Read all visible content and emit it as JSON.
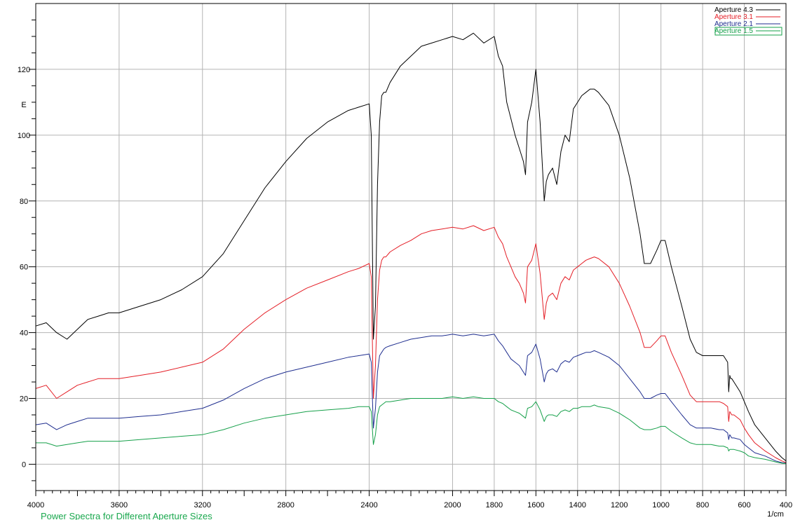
{
  "chart_data": {
    "type": "line",
    "caption": "Power Spectra for Different Aperture Sizes",
    "xlabel": "1/cm",
    "ylabel": "E",
    "xlim": [
      4000,
      400
    ],
    "ylim": [
      -8,
      140
    ],
    "x_reversed": true,
    "xticks": [
      4000,
      3600,
      3200,
      2800,
      2400,
      2000,
      1800,
      1600,
      1400,
      1200,
      1000,
      800,
      600,
      400
    ],
    "yticks": [
      0,
      20,
      40,
      60,
      80,
      100,
      120
    ],
    "grid": true,
    "legend_position": "top-right",
    "colors": {
      "grid": "#b4b4b4",
      "axis": "#000000",
      "caption": "#1aa84e"
    },
    "series": [
      {
        "name": "Aperture 4.3",
        "color": "#000000",
        "x": [
          4000,
          3950,
          3900,
          3850,
          3800,
          3750,
          3700,
          3650,
          3600,
          3500,
          3400,
          3300,
          3200,
          3100,
          3000,
          2900,
          2800,
          2700,
          2600,
          2500,
          2450,
          2400,
          2390,
          2380,
          2370,
          2360,
          2350,
          2340,
          2330,
          2320,
          2300,
          2250,
          2200,
          2150,
          2100,
          2050,
          2000,
          1950,
          1900,
          1850,
          1800,
          1780,
          1760,
          1740,
          1720,
          1700,
          1680,
          1660,
          1650,
          1640,
          1620,
          1600,
          1580,
          1560,
          1550,
          1540,
          1520,
          1500,
          1480,
          1460,
          1440,
          1420,
          1400,
          1380,
          1360,
          1340,
          1320,
          1300,
          1250,
          1200,
          1150,
          1100,
          1080,
          1050,
          1020,
          1000,
          980,
          950,
          900,
          860,
          830,
          800,
          760,
          720,
          700,
          680,
          675,
          670,
          665,
          660,
          650,
          620,
          600,
          580,
          550,
          500,
          450,
          420,
          400
        ],
        "y": [
          42,
          43,
          40,
          38,
          41,
          44,
          45,
          46,
          46,
          48,
          50,
          53,
          57,
          64,
          74,
          84,
          92,
          99,
          104,
          107.5,
          108.5,
          109.5,
          100,
          38,
          48,
          85,
          104,
          112,
          113,
          113,
          116,
          121,
          124,
          127,
          128,
          129,
          130,
          129,
          131,
          128,
          130,
          124,
          121,
          110,
          105,
          100,
          96,
          92,
          88,
          104,
          110,
          120,
          104,
          80,
          86,
          88,
          90,
          85,
          95,
          100,
          98,
          108,
          110,
          112,
          113,
          114,
          114,
          113,
          109,
          100,
          87,
          70,
          61,
          61,
          65,
          68,
          68,
          60,
          48,
          38,
          34,
          33,
          33,
          33,
          33,
          31,
          22,
          27,
          26,
          26,
          25,
          22,
          19,
          16,
          12,
          8,
          4,
          2,
          1
        ]
      },
      {
        "name": "Aperture 3.1",
        "color": "#e41e26",
        "x": [
          4000,
          3950,
          3900,
          3850,
          3800,
          3750,
          3700,
          3650,
          3600,
          3500,
          3400,
          3300,
          3200,
          3100,
          3000,
          2900,
          2800,
          2700,
          2600,
          2500,
          2450,
          2400,
          2390,
          2380,
          2370,
          2360,
          2350,
          2340,
          2330,
          2320,
          2300,
          2250,
          2200,
          2150,
          2100,
          2050,
          2000,
          1950,
          1900,
          1850,
          1800,
          1780,
          1760,
          1740,
          1720,
          1700,
          1680,
          1660,
          1650,
          1640,
          1620,
          1600,
          1580,
          1560,
          1550,
          1540,
          1520,
          1500,
          1480,
          1460,
          1440,
          1420,
          1400,
          1380,
          1360,
          1340,
          1320,
          1300,
          1250,
          1200,
          1150,
          1100,
          1080,
          1050,
          1020,
          1000,
          980,
          950,
          900,
          860,
          830,
          800,
          760,
          720,
          700,
          680,
          675,
          670,
          665,
          660,
          650,
          620,
          600,
          580,
          550,
          500,
          450,
          420,
          400
        ],
        "y": [
          23,
          24,
          20,
          22,
          24,
          25,
          26,
          26,
          26,
          27,
          28,
          29.5,
          31,
          35,
          41,
          46,
          50,
          53.5,
          56,
          58.5,
          59.5,
          61,
          57,
          20,
          30,
          50,
          59,
          62,
          63,
          63,
          64.5,
          66.5,
          68,
          70,
          71,
          71.5,
          72,
          71.5,
          72.5,
          71,
          72,
          69,
          67,
          63,
          60,
          57,
          55,
          52,
          49,
          60,
          62,
          67,
          58,
          44,
          49,
          51,
          52,
          50,
          55,
          57,
          56,
          59,
          60,
          61,
          62,
          62.5,
          63,
          62.5,
          60,
          55,
          48,
          40,
          35.5,
          35.5,
          37.5,
          39,
          39,
          34,
          27,
          21,
          19,
          19,
          19,
          19,
          18.5,
          17.5,
          13,
          16,
          15.5,
          15,
          15,
          13.5,
          11,
          9,
          6.5,
          4,
          2,
          1,
          0.5
        ]
      },
      {
        "name": "Aperture 2.1",
        "color": "#1f2e8f",
        "x": [
          4000,
          3950,
          3900,
          3850,
          3800,
          3750,
          3700,
          3650,
          3600,
          3500,
          3400,
          3300,
          3200,
          3100,
          3000,
          2900,
          2800,
          2700,
          2600,
          2500,
          2450,
          2400,
          2390,
          2380,
          2370,
          2360,
          2350,
          2340,
          2330,
          2320,
          2300,
          2250,
          2200,
          2150,
          2100,
          2050,
          2000,
          1950,
          1900,
          1850,
          1800,
          1780,
          1760,
          1740,
          1720,
          1700,
          1680,
          1660,
          1650,
          1640,
          1620,
          1600,
          1580,
          1560,
          1550,
          1540,
          1520,
          1500,
          1480,
          1460,
          1440,
          1420,
          1400,
          1380,
          1360,
          1340,
          1320,
          1300,
          1250,
          1200,
          1150,
          1100,
          1080,
          1050,
          1020,
          1000,
          980,
          950,
          900,
          860,
          830,
          800,
          760,
          720,
          700,
          680,
          675,
          670,
          665,
          660,
          650,
          620,
          600,
          580,
          550,
          500,
          450,
          420,
          400
        ],
        "y": [
          12,
          12.5,
          10.5,
          12,
          13,
          14,
          14,
          14,
          14,
          14.5,
          15,
          16,
          17,
          19.5,
          23,
          26,
          28,
          29.5,
          31,
          32.5,
          33,
          33.5,
          31,
          11,
          17,
          28,
          33,
          34,
          35,
          35.5,
          36,
          37,
          38,
          38.5,
          39,
          39,
          39.5,
          39,
          39.5,
          39,
          39.5,
          37.5,
          36,
          34,
          32,
          31,
          30,
          28,
          27,
          33,
          34,
          36.5,
          32,
          25,
          27.5,
          28.5,
          29,
          28,
          30.5,
          31.5,
          31,
          32.5,
          33,
          33.5,
          34,
          34,
          34.5,
          34,
          32.5,
          30,
          26,
          22,
          20,
          20,
          21,
          21.5,
          21.5,
          19,
          15,
          12,
          11,
          11,
          11,
          10.5,
          10.5,
          9.5,
          7.5,
          9,
          8.5,
          8,
          8,
          7.5,
          6,
          5,
          3.5,
          2.5,
          1,
          0.5,
          0.3
        ]
      },
      {
        "name": "Aperture 1.5",
        "color": "#16a04a",
        "x": [
          4000,
          3950,
          3900,
          3850,
          3800,
          3750,
          3700,
          3650,
          3600,
          3500,
          3400,
          3300,
          3200,
          3100,
          3000,
          2900,
          2800,
          2700,
          2600,
          2500,
          2450,
          2400,
          2390,
          2380,
          2370,
          2360,
          2350,
          2340,
          2330,
          2320,
          2300,
          2250,
          2200,
          2150,
          2100,
          2050,
          2000,
          1950,
          1900,
          1850,
          1800,
          1780,
          1760,
          1740,
          1720,
          1700,
          1680,
          1660,
          1650,
          1640,
          1620,
          1600,
          1580,
          1560,
          1550,
          1540,
          1520,
          1500,
          1480,
          1460,
          1440,
          1420,
          1400,
          1380,
          1360,
          1340,
          1320,
          1300,
          1250,
          1200,
          1150,
          1100,
          1080,
          1050,
          1020,
          1000,
          980,
          950,
          900,
          860,
          830,
          800,
          760,
          720,
          700,
          680,
          675,
          670,
          665,
          660,
          650,
          620,
          600,
          580,
          550,
          500,
          450,
          420,
          400
        ],
        "y": [
          6.5,
          6.5,
          5.5,
          6,
          6.5,
          7,
          7,
          7,
          7,
          7.5,
          8,
          8.5,
          9,
          10.5,
          12.5,
          14,
          15,
          16,
          16.5,
          17,
          17.5,
          17.5,
          16,
          6,
          9,
          15,
          17.5,
          18,
          18.5,
          19,
          19,
          19.5,
          20,
          20,
          20,
          20,
          20.5,
          20,
          20.5,
          20,
          20,
          19,
          18.5,
          17.5,
          16.5,
          16,
          15.5,
          14.5,
          14,
          17,
          17.5,
          19,
          16.5,
          13,
          14.5,
          15,
          15,
          14.5,
          16,
          16.5,
          16,
          17,
          17,
          17.5,
          17.5,
          17.5,
          18,
          17.5,
          17,
          15.5,
          13.5,
          11,
          10.5,
          10.5,
          11,
          11.5,
          11.5,
          10,
          8,
          6.5,
          6,
          6,
          6,
          5.5,
          5.5,
          5,
          4,
          4.5,
          4.5,
          4.5,
          4.5,
          4,
          3.5,
          2.5,
          2,
          1.5,
          0.7,
          0.3,
          0.2
        ]
      }
    ]
  }
}
